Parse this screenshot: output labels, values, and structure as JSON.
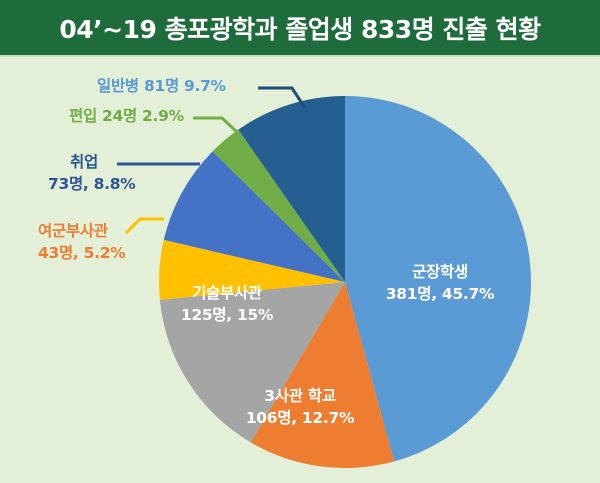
{
  "header": {
    "title": "04’~19 총포광학과 졸업생 833명 진출 현황"
  },
  "colors": {
    "header_bg": "#1e6b3b",
    "background": "#e3efd7"
  },
  "labels": {
    "ilbanbyeong": "일반병 81명 9.7%",
    "pyeonip": "편입 24명 2.9%",
    "chwieop_name": "취업",
    "chwieop_value": "73명, 8.8%",
    "yeogun_name": "여군부사관",
    "yeogun_value": "43명, 5.2%",
    "gisul_name": "기술부사관",
    "gisul_value": "125명, 15%",
    "samsagwan_name": "3사관 학교",
    "samsagwan_value": "106명, 12.7%",
    "gunjang_name": "군장학생",
    "gunjang_value": "381명, 45.7%"
  },
  "chart_data": {
    "type": "pie",
    "title": "04’~19 총포광학과 졸업생 833명 진출 현황",
    "total": 833,
    "start_angle": "12 o'clock, clockwise",
    "slices": [
      {
        "label": "군장학생",
        "count": 381,
        "percent": 45.7,
        "color": "#5b9bd5"
      },
      {
        "label": "3사관 학교",
        "count": 106,
        "percent": 12.7,
        "color": "#ed7d31"
      },
      {
        "label": "기술부사관",
        "count": 125,
        "percent": 15.0,
        "color": "#a5a5a5"
      },
      {
        "label": "여군부사관",
        "count": 43,
        "percent": 5.2,
        "color": "#ffc000"
      },
      {
        "label": "취업",
        "count": 73,
        "percent": 8.8,
        "color": "#4472c4"
      },
      {
        "label": "편입",
        "count": 24,
        "percent": 2.9,
        "color": "#70ad47"
      },
      {
        "label": "일반병",
        "count": 81,
        "percent": 9.7,
        "color": "#255e91"
      }
    ],
    "legend": "none (callout labels)"
  }
}
